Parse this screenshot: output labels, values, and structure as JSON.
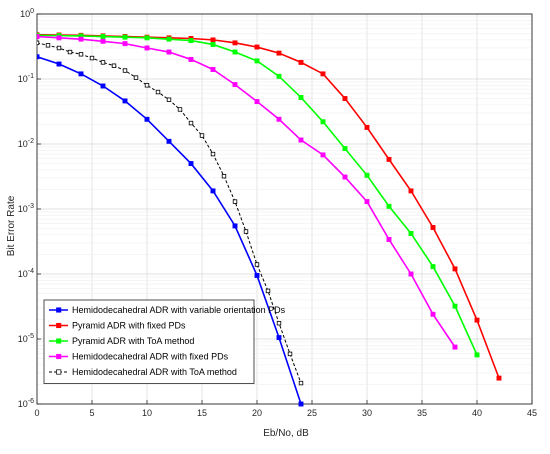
{
  "chart_data": {
    "type": "line",
    "title": "",
    "xlabel": "Eb/No, dB",
    "ylabel": "Bit Error Rate",
    "xlim": [
      0,
      45
    ],
    "ylim": [
      1e-06,
      1
    ],
    "y_scale": "log",
    "grid": true,
    "legend_position": "bottom-left",
    "x_ticks": [
      "0",
      "5",
      "10",
      "15",
      "20",
      "25",
      "30",
      "35",
      "40",
      "45"
    ],
    "y_ticks": [
      {
        "base": "10",
        "exp": "0"
      },
      {
        "base": "10",
        "exp": "-1"
      },
      {
        "base": "10",
        "exp": "-2"
      },
      {
        "base": "10",
        "exp": "-3"
      },
      {
        "base": "10",
        "exp": "-4"
      },
      {
        "base": "10",
        "exp": "-5"
      },
      {
        "base": "10",
        "exp": "-6"
      }
    ],
    "series": [
      {
        "name": "Hemidodecahedral ADR with variable orientation PDs",
        "color": "#0000ff",
        "dash": false,
        "marker": "square-filled",
        "x": [
          0,
          2,
          4,
          6,
          8,
          10,
          12,
          14,
          16,
          18,
          20,
          22,
          24
        ],
        "y": [
          0.22,
          0.17,
          0.12,
          0.078,
          0.046,
          0.024,
          0.011,
          0.005,
          0.0019,
          0.00055,
          9.5e-05,
          1.05e-05,
          1e-06
        ]
      },
      {
        "name": "Pyramid ADR with fixed PDs",
        "color": "#ff0000",
        "dash": false,
        "marker": "square-filled",
        "x": [
          0,
          2,
          4,
          6,
          8,
          10,
          12,
          14,
          16,
          18,
          20,
          22,
          24,
          26,
          28,
          30,
          32,
          34,
          36,
          38,
          40,
          42
        ],
        "y": [
          0.48,
          0.475,
          0.47,
          0.46,
          0.45,
          0.44,
          0.43,
          0.42,
          0.4,
          0.36,
          0.31,
          0.25,
          0.18,
          0.12,
          0.05,
          0.018,
          0.0058,
          0.0019,
          0.00052,
          0.00012,
          1.95e-05,
          2.5e-06
        ]
      },
      {
        "name": "Pyramid ADR with ToA method",
        "color": "#00ff00",
        "dash": false,
        "marker": "square-filled",
        "x": [
          0,
          2,
          4,
          6,
          8,
          10,
          12,
          14,
          16,
          18,
          20,
          22,
          24,
          26,
          28,
          30,
          32,
          34,
          36,
          38,
          40
        ],
        "y": [
          0.47,
          0.465,
          0.46,
          0.45,
          0.44,
          0.43,
          0.41,
          0.39,
          0.34,
          0.26,
          0.19,
          0.11,
          0.052,
          0.022,
          0.0085,
          0.0033,
          0.0011,
          0.00042,
          0.00013,
          3.2e-05,
          5.7e-06
        ]
      },
      {
        "name": "Hemidodecahedral ADR with fixed PDs",
        "color": "#ff00ff",
        "dash": false,
        "marker": "square-filled",
        "x": [
          0,
          2,
          4,
          6,
          8,
          10,
          12,
          14,
          16,
          18,
          20,
          22,
          24,
          26,
          28,
          30,
          32,
          34,
          36,
          38
        ],
        "y": [
          0.45,
          0.43,
          0.41,
          0.38,
          0.35,
          0.3,
          0.26,
          0.2,
          0.14,
          0.082,
          0.045,
          0.024,
          0.0115,
          0.0068,
          0.0031,
          0.0013,
          0.00034,
          0.0001,
          2.4e-05,
          7.5e-06
        ]
      },
      {
        "name": "Hemidodecahedral ADR with ToA method",
        "color": "#000000",
        "dash": true,
        "marker": "square-open",
        "x": [
          0,
          1,
          2,
          3,
          4,
          5,
          6,
          7,
          8,
          9,
          10,
          11,
          12,
          13,
          14,
          15,
          16,
          17,
          18,
          19,
          20,
          21,
          22,
          23,
          24
        ],
        "y": [
          0.36,
          0.33,
          0.3,
          0.26,
          0.24,
          0.21,
          0.18,
          0.16,
          0.135,
          0.105,
          0.08,
          0.063,
          0.048,
          0.034,
          0.021,
          0.0135,
          0.007,
          0.0032,
          0.0013,
          0.00045,
          0.00014,
          5.5e-05,
          1.75e-05,
          5.9e-06,
          2.1e-06
        ]
      }
    ]
  }
}
